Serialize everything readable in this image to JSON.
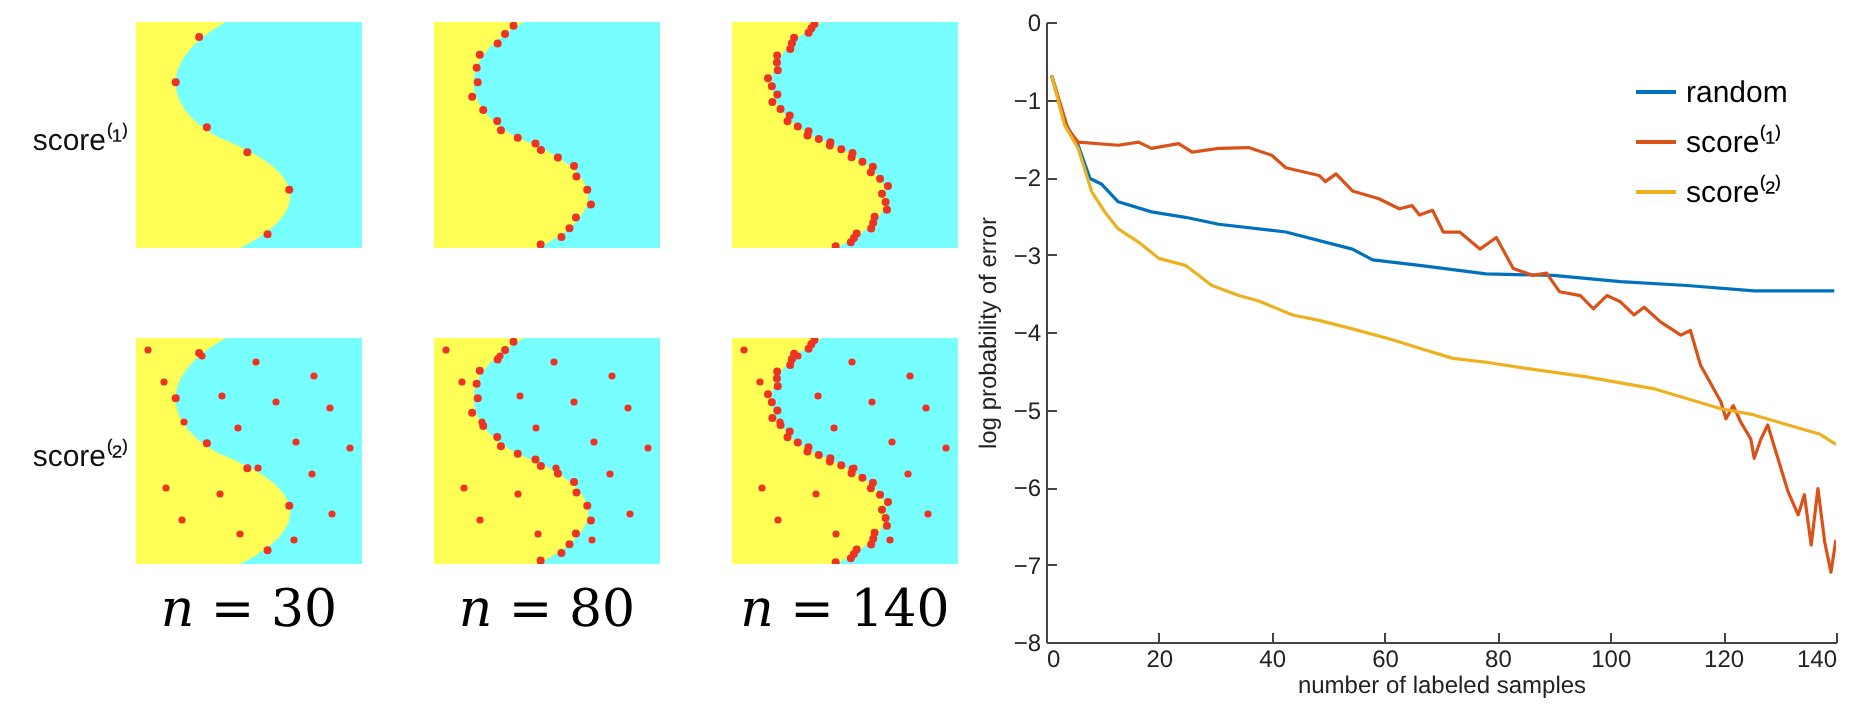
{
  "chart_data": [
    {
      "type": "other",
      "categories": [
        "n = 30",
        "n = 80",
        "n = 140"
      ],
      "y_categories": [
        "score⁽¹⁾",
        "score⁽²⁾"
      ]
    },
    {
      "type": "line",
      "xlabel": "number of labeled samples",
      "ylabel": "log probability of error",
      "xlim": [
        0,
        140
      ],
      "xticks": [
        0,
        20,
        40,
        60,
        80,
        100,
        120,
        140
      ],
      "ylim": [
        -8,
        0
      ],
      "yticks": [
        -8,
        -7,
        -6,
        -5,
        -4,
        -3,
        -2,
        -1,
        0
      ],
      "legend": "top right",
      "grid": false,
      "line_style": "solid",
      "series": [
        {
          "name": "random",
          "color": "#0072bd",
          "x": [
            1,
            3.3,
            5.7,
            7.8,
            9.8,
            12.8,
            18.7,
            24.7,
            30.6,
            42.5,
            54.3,
            57.9,
            66.2,
            78,
            89.9,
            101.8,
            113.6,
            125.5,
            139.7
          ],
          "values": [
            -0.69,
            -1.29,
            -1.59,
            -2.02,
            -2.09,
            -2.32,
            -2.45,
            -2.52,
            -2.61,
            -2.71,
            -2.93,
            -3.07,
            -3.14,
            -3.25,
            -3.27,
            -3.35,
            -3.4,
            -3.47,
            -3.47
          ]
        },
        {
          "name": "score⁽¹⁾",
          "color": "#d95319",
          "x": [
            1,
            3.9,
            5.7,
            12.8,
            16.4,
            18.7,
            23.5,
            25.9,
            30.6,
            35.9,
            40,
            42.5,
            48.4,
            49.5,
            51.4,
            54.3,
            59,
            62.6,
            64.9,
            66.2,
            68.5,
            70.4,
            73.3,
            76.9,
            79.8,
            82.8,
            86.3,
            88.7,
            91,
            94.7,
            97,
            99.4,
            101.8,
            104.2,
            106,
            108.9,
            112.5,
            114.2,
            116,
            119.6,
            120.5,
            121.8,
            123.1,
            124.9,
            125.5,
            126.7,
            127.9,
            129.7,
            131.5,
            133.3,
            134.4,
            135.6,
            136.8,
            138,
            139.1,
            140
          ],
          "values": [
            -0.69,
            -1.38,
            -1.55,
            -1.59,
            -1.55,
            -1.63,
            -1.57,
            -1.68,
            -1.63,
            -1.62,
            -1.72,
            -1.88,
            -1.98,
            -2.06,
            -1.96,
            -2.18,
            -2.28,
            -2.41,
            -2.37,
            -2.49,
            -2.43,
            -2.71,
            -2.71,
            -2.93,
            -2.78,
            -3.18,
            -3.27,
            -3.24,
            -3.48,
            -3.53,
            -3.7,
            -3.53,
            -3.61,
            -3.78,
            -3.68,
            -3.87,
            -4.04,
            -3.98,
            -4.43,
            -4.9,
            -5.12,
            -4.95,
            -5.16,
            -5.38,
            -5.63,
            -5.38,
            -5.2,
            -5.63,
            -6.06,
            -6.36,
            -6.1,
            -6.75,
            -6.02,
            -6.71,
            -7.1,
            -6.68
          ]
        },
        {
          "name": "score⁽²⁾",
          "color": "#edb120",
          "x": [
            1,
            3.3,
            5.7,
            8.1,
            10.4,
            12.8,
            16.4,
            20,
            24.7,
            29.4,
            34.2,
            37.7,
            43.7,
            48.4,
            54.3,
            61.4,
            66.2,
            72.1,
            78,
            85.1,
            95.8,
            107.6,
            119.6,
            125.5,
            131.5,
            137.2,
            140
          ],
          "values": [
            -0.69,
            -1.33,
            -1.63,
            -2.19,
            -2.45,
            -2.67,
            -2.84,
            -3.05,
            -3.14,
            -3.4,
            -3.53,
            -3.6,
            -3.78,
            -3.85,
            -3.96,
            -4.1,
            -4.21,
            -4.34,
            -4.39,
            -4.47,
            -4.58,
            -4.73,
            -4.99,
            -5.07,
            -5.2,
            -5.32,
            -5.45
          ]
        }
      ]
    }
  ]
}
